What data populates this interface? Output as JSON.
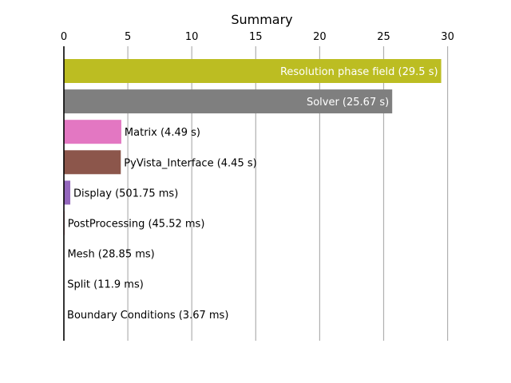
{
  "chart_data": {
    "type": "bar",
    "orientation": "horizontal",
    "title": "Summary",
    "xlabel": "",
    "ylabel": "",
    "xlim": [
      0,
      30.9
    ],
    "x_ticks": [
      0,
      5,
      10,
      15,
      20,
      25,
      30
    ],
    "x_axis_position": "top",
    "grid": "vertical",
    "categories": [
      "Resolution phase field",
      "Solver",
      "Matrix",
      "PyVista_Interface",
      "Display",
      "PostProcessing",
      "Mesh",
      "Split",
      "Boundary Conditions"
    ],
    "values": [
      29.5,
      25.67,
      4.49,
      4.45,
      0.50175,
      0.04552,
      0.02885,
      0.0119,
      0.00367
    ],
    "unit": "s",
    "labels": [
      "Resolution phase field (29.5 s)",
      "Solver (25.67 s)",
      "Matrix (4.49 s)",
      "PyVista_Interface (4.45 s)",
      "Display (501.75 ms)",
      "PostProcessing (45.52 ms)",
      "Mesh (28.85 ms)",
      "Split (11.9 ms)",
      "Boundary Conditions (3.67 ms)"
    ],
    "label_inside": [
      true,
      true,
      false,
      false,
      false,
      false,
      false,
      false,
      false
    ],
    "colors": [
      "#bcbd22",
      "#7f7f7f",
      "#e377c2",
      "#8c564b",
      "#9467bd",
      "#d62728",
      "#2ca02c",
      "#ff7f0e",
      "#1f77b4"
    ]
  }
}
